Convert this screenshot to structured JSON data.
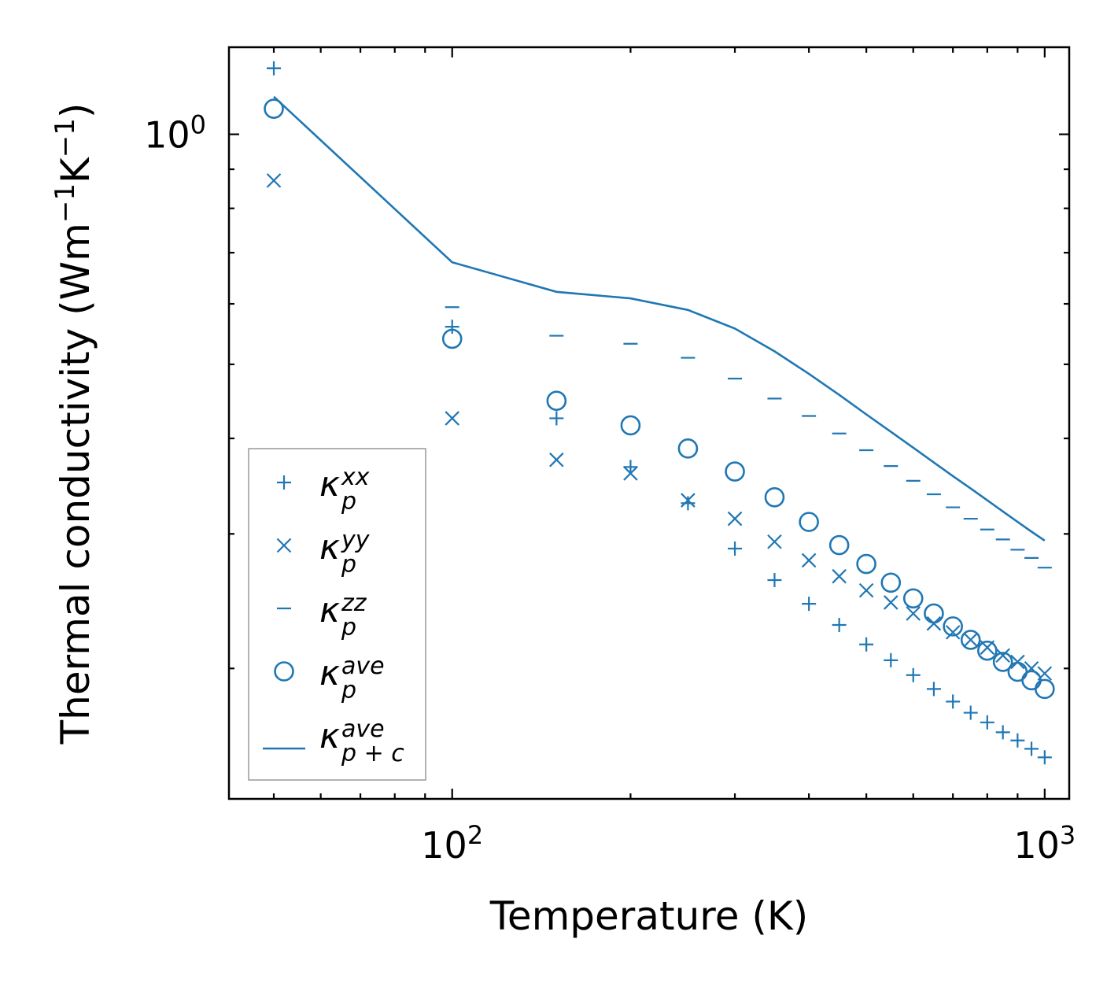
{
  "colors": {
    "series": "#1f77b4",
    "axes": "#000000",
    "legend_frame": "#999999"
  },
  "chart_data": {
    "type": "scatter",
    "xscale": "log",
    "yscale": "log",
    "xlabel": "Temperature (K)",
    "ylabel": "Thermal conductivity (Wm",
    "ylabel_unit_parts": [
      "Wm",
      "-1",
      "K",
      "-1",
      ")"
    ],
    "xlim": [
      42,
      1100
    ],
    "ylim": [
      0.135,
      1.3
    ],
    "x_major_ticks": [
      {
        "value": 100,
        "base": "10",
        "exp": "2"
      },
      {
        "value": 1000,
        "base": "10",
        "exp": "3"
      }
    ],
    "y_major_ticks": [
      {
        "value": 1.0,
        "base": "10",
        "exp": "0"
      }
    ],
    "x_minor_ticks": [
      50,
      60,
      70,
      80,
      90,
      200,
      300,
      400,
      500,
      600,
      700,
      800,
      900
    ],
    "y_minor_ticks": [
      0.2,
      0.3,
      0.4,
      0.5,
      0.6,
      0.7,
      0.8,
      0.9
    ],
    "x": [
      50,
      100,
      150,
      200,
      250,
      300,
      350,
      400,
      450,
      500,
      550,
      600,
      650,
      700,
      750,
      800,
      850,
      900,
      950,
      1000
    ],
    "legend_position": "lower-left",
    "series": [
      {
        "name": "κ_p^xx",
        "label_main": "κ",
        "label_sub": "p",
        "label_sup": "xx",
        "marker": "plus",
        "values": [
          1.22,
          0.56,
          0.425,
          0.367,
          0.329,
          0.287,
          0.261,
          0.243,
          0.228,
          0.215,
          0.205,
          0.196,
          0.188,
          0.181,
          0.175,
          0.17,
          0.165,
          0.161,
          0.157,
          0.153
        ]
      },
      {
        "name": "κ_p^yy",
        "label_main": "κ",
        "label_sub": "p",
        "label_sup": "yy",
        "marker": "x",
        "values": [
          0.87,
          0.425,
          0.375,
          0.36,
          0.332,
          0.314,
          0.293,
          0.277,
          0.264,
          0.253,
          0.244,
          0.236,
          0.229,
          0.223,
          0.218,
          0.213,
          0.208,
          0.204,
          0.2,
          0.197
        ]
      },
      {
        "name": "κ_p^zz",
        "label_main": "κ",
        "label_sub": "p",
        "label_sup": "zz",
        "marker": "hline",
        "values": [
          1.22,
          0.594,
          0.545,
          0.532,
          0.51,
          0.479,
          0.451,
          0.428,
          0.406,
          0.386,
          0.368,
          0.352,
          0.338,
          0.325,
          0.314,
          0.304,
          0.295,
          0.286,
          0.279,
          0.271
        ]
      },
      {
        "name": "κ_p^ave",
        "label_main": "κ",
        "label_sub": "p",
        "label_sup": "ave",
        "marker": "circle",
        "values": [
          1.08,
          0.54,
          0.448,
          0.416,
          0.388,
          0.362,
          0.335,
          0.311,
          0.29,
          0.274,
          0.259,
          0.247,
          0.236,
          0.227,
          0.218,
          0.211,
          0.204,
          0.198,
          0.193,
          0.188
        ]
      },
      {
        "name": "κ_{p+c}^ave",
        "label_main": "κ",
        "label_sub": "p + c",
        "label_sup": "ave",
        "marker": "line",
        "values": [
          1.12,
          0.68,
          0.622,
          0.61,
          0.589,
          0.557,
          0.52,
          0.486,
          0.456,
          0.43,
          0.408,
          0.389,
          0.372,
          0.357,
          0.344,
          0.332,
          0.321,
          0.311,
          0.302,
          0.294
        ]
      }
    ]
  }
}
